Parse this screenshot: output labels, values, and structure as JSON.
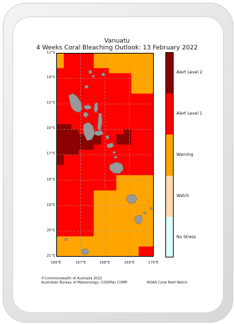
{
  "title": "Vanuatu",
  "subtitle": "4 Weeks Coral Bleaching Outlook: 13 February 2022",
  "lat_ticks": [
    "12°S",
    "14°S",
    "15°S",
    "16°S",
    "17°S",
    "18°S",
    "19°S",
    "20°S",
    "21°S"
  ],
  "lon_ticks": [
    "166°E",
    "167°E",
    "168°E",
    "169°E",
    "170°E"
  ],
  "legend": [
    {
      "label": "Alert Level 2",
      "color": "#8b0000"
    },
    {
      "label": "Alert Level 1",
      "color": "#ff0000"
    },
    {
      "label": "Warning",
      "color": "#ffa500"
    },
    {
      "label": "Watch",
      "color": "#ffdab0"
    },
    {
      "label": "No Stress",
      "color": "#ddffff"
    }
  ],
  "colors": {
    "alert2": "#8b0000",
    "alert1": "#ff0000",
    "warning": "#ffa500",
    "land": "#999999",
    "grid": "#9a9a9a"
  },
  "outlook_grid": {
    "rows": [
      "O1111OOOOOOOO",
      "O1111OOOOOOOO",
      "O1111OOOOOOOO",
      "1111111OOOOOO",
      "1111111111OOO",
      "1111111111OOO",
      "1111111111OOO",
      "1111111111OOO",
      "1111111111111",
      "1111111111111",
      "1111111111111",
      "1111111111111",
      "1111111111111",
      "1111111111111",
      "2211111111111",
      "2221111112111",
      "2222221122111",
      "2222221122111",
      "2222211111111",
      "2221111111111",
      "2111111111111",
      "2111111111111",
      "1111111111111",
      "1111111111111",
      "11111111OOOOO",
      "11111111OOOOO",
      "11111111OOOOO",
      "11111OOOOOOOO",
      "11111OOOOOOOO",
      "11111OOOOOOOO",
      "11111OOOOOOOO",
      "11111OOOOOOOO",
      "11111OOOOOOOO",
      "11111OOOOOOOO",
      "11111OOOOOOOO",
      "11111OOOOOOOO",
      "OOOOOOOOOOOOO",
      "OOOOOOOOOOOOO",
      "OOOOOOOOOOO11",
      "OOOOOOOOOOO11"
    ]
  },
  "footer": {
    "copyright": "©Commonwealth of Australia 2022",
    "agencies": "Australian Bureau of Meteorology, COSPPac COMP",
    "noaa": "NOAA Coral Reef Watch"
  }
}
